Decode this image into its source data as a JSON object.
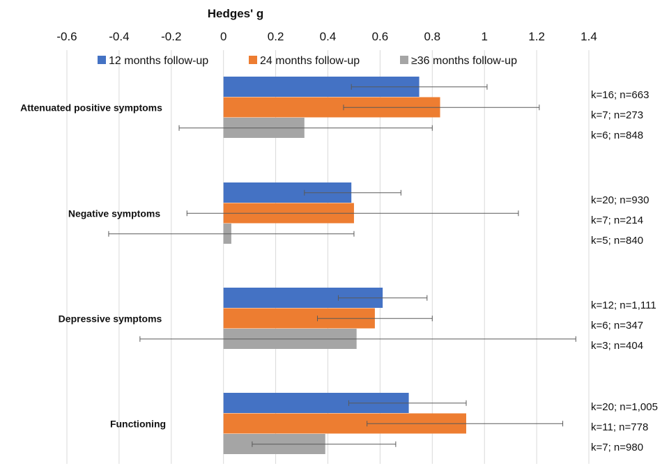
{
  "chart_data": {
    "type": "bar",
    "orientation": "horizontal",
    "title": "Hedges' g",
    "xlim": [
      -0.6,
      1.4
    ],
    "x_ticks": [
      "-0.6",
      "-0.4",
      "-0.2",
      "0",
      "0.2",
      "0.4",
      "0.6",
      "0.8",
      "1",
      "1.2",
      "1.4"
    ],
    "grid": true,
    "legend_position": "top",
    "categories": [
      "Attenuated positive symptoms",
      "Negative symptoms",
      "Depressive symptoms",
      "Functioning"
    ],
    "series": [
      {
        "name": "12 months follow-up",
        "color": "#4472C4",
        "values": [
          0.75,
          0.49,
          0.61,
          0.71
        ],
        "ci_low": [
          0.49,
          0.31,
          0.44,
          0.48
        ],
        "ci_high": [
          1.01,
          0.68,
          0.78,
          0.93
        ]
      },
      {
        "name": "24 months follow-up",
        "color": "#ED7D31",
        "values": [
          0.83,
          0.5,
          0.58,
          0.93
        ],
        "ci_low": [
          0.46,
          -0.14,
          0.36,
          0.55
        ],
        "ci_high": [
          1.21,
          1.13,
          0.8,
          1.3
        ]
      },
      {
        "name": "≥36 months follow-up",
        "color": "#A5A5A5",
        "values": [
          0.31,
          0.03,
          0.51,
          0.39
        ],
        "ci_low": [
          -0.17,
          -0.44,
          -0.32,
          0.11
        ],
        "ci_high": [
          0.8,
          0.5,
          1.35,
          0.66
        ]
      }
    ],
    "annotations": [
      [
        "k=16; n=663",
        "k=7; n=273",
        "k=6; n=848"
      ],
      [
        "k=20; n=930",
        "k=7; n=214",
        "k=5; n=840"
      ],
      [
        "k=12; n=1,111",
        "k=6; n=347",
        "k=3; n=404"
      ],
      [
        "k=20; n=1,005",
        "k=11; n=778",
        "k=7; n=980"
      ]
    ]
  }
}
